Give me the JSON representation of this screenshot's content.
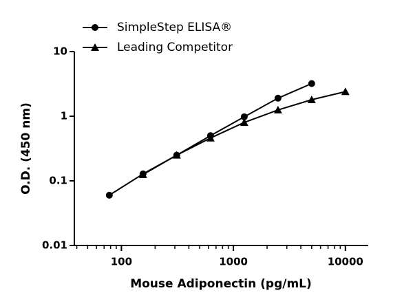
{
  "chart_data": {
    "type": "line",
    "x_label": "Mouse Adiponectin (pg/mL)",
    "y_label": "O.D. (450 nm)",
    "x": [
      78,
      156,
      312,
      625,
      1250,
      2500,
      5000,
      10000
    ],
    "series": [
      {
        "name": "SimpleStep ELISA®",
        "color": "#000000",
        "marker": "circle",
        "values": [
          0.06,
          0.128,
          0.25,
          0.5,
          0.98,
          1.9,
          3.2,
          null
        ]
      },
      {
        "name": "Leading Competitor",
        "color": "#000000",
        "marker": "triangle",
        "values": [
          null,
          0.125,
          0.25,
          0.46,
          0.8,
          1.25,
          1.8,
          2.4
        ]
      }
    ],
    "xscale": "log",
    "yscale": "log",
    "xlim": [
      38,
      16000
    ],
    "ylim": [
      0.01,
      10
    ],
    "xticks": [
      100,
      1000,
      10000
    ],
    "xminorticks": [
      40,
      50,
      60,
      70,
      80,
      90,
      200,
      300,
      400,
      500,
      600,
      700,
      800,
      900,
      2000,
      3000,
      4000,
      5000,
      6000,
      7000,
      8000,
      9000
    ],
    "yticks": [
      0.01,
      0.1,
      1,
      10
    ],
    "legend": "top-left"
  }
}
